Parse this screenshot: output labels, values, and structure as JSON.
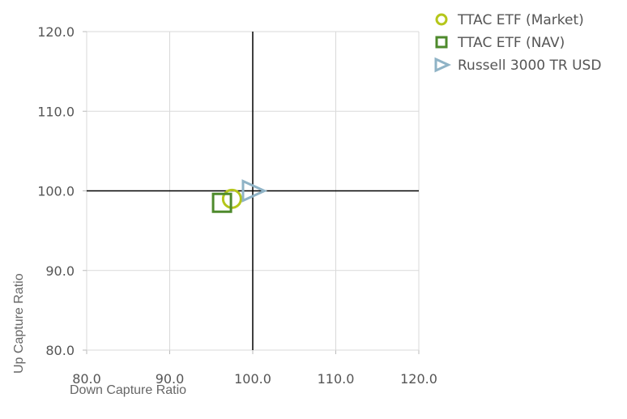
{
  "chart_data": {
    "type": "scatter",
    "xlabel": "Down Capture Ratio",
    "ylabel": "Up Capture Ratio",
    "xlim": [
      80,
      120
    ],
    "ylim": [
      80,
      120
    ],
    "xticks": [
      "80.0",
      "90.0",
      "100.0",
      "110.0",
      "120.0"
    ],
    "yticks": [
      "80.0",
      "90.0",
      "100.0",
      "110.0",
      "120.0"
    ],
    "grid": true,
    "reference_lines": {
      "x": 100,
      "y": 100
    },
    "legend_position": "top-right",
    "series": [
      {
        "name": "TTAC ETF (Market)",
        "marker": "circle",
        "color": "#b5c61b",
        "x": 97.5,
        "y": 99.0
      },
      {
        "name": "TTAC ETF (NAV)",
        "marker": "square",
        "color": "#4e8a2c",
        "x": 96.3,
        "y": 98.5
      },
      {
        "name": "Russell 3000 TR USD",
        "marker": "triangle-right",
        "color": "#8fb3c6",
        "x": 100.0,
        "y": 100.0
      }
    ]
  }
}
